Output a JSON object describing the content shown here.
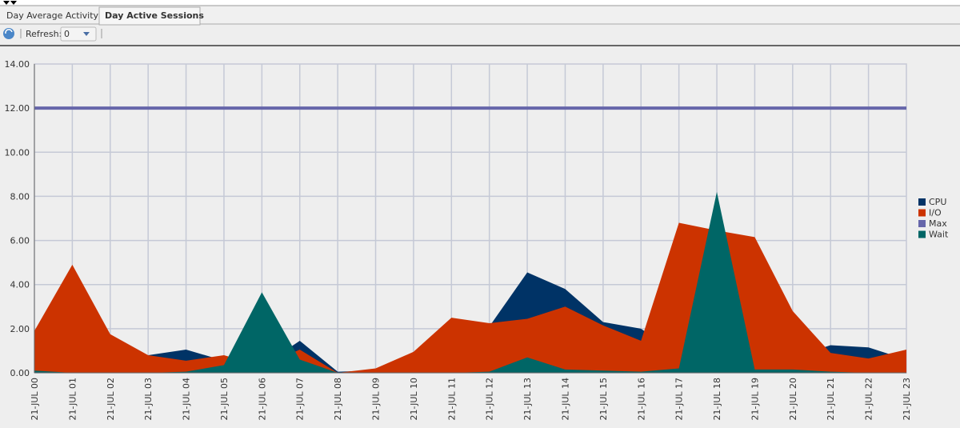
{
  "tabs": [
    "Day Average Activity",
    "Day Active Sessions"
  ],
  "toolbar": {
    "refresh_label": "Refresh:",
    "refresh_value": "0"
  },
  "chart_data": {
    "type": "area",
    "categories": [
      "21-JUL 00",
      "21-JUL 01",
      "21-JUL 02",
      "21-JUL 03",
      "21-JUL 04",
      "21-JUL 05",
      "21-JUL 06",
      "21-JUL 07",
      "21-JUL 08",
      "21-JUL 09",
      "21-JUL 10",
      "21-JUL 11",
      "21-JUL 12",
      "21-JUL 13",
      "21-JUL 14",
      "21-JUL 15",
      "21-JUL 16",
      "21-JUL 17",
      "21-JUL 18",
      "21-JUL 19",
      "21-JUL 20",
      "21-JUL 21",
      "21-JUL 22",
      "21-JUL 23"
    ],
    "series": [
      {
        "name": "CPU",
        "color": "#003366",
        "style": "area",
        "values": [
          1.5,
          0.5,
          0.4,
          0.8,
          1.05,
          0.55,
          0.3,
          1.45,
          0.05,
          0.1,
          0.3,
          0.6,
          2.1,
          4.55,
          3.8,
          2.3,
          2.0,
          0.8,
          0.6,
          0.5,
          0.7,
          1.25,
          1.15,
          0.6
        ]
      },
      {
        "name": "I/O",
        "color": "#cc3300",
        "style": "area",
        "values": [
          1.9,
          4.9,
          1.75,
          0.8,
          0.55,
          0.8,
          0.3,
          1.05,
          0.0,
          0.2,
          0.95,
          2.5,
          2.25,
          2.45,
          3.0,
          2.15,
          1.45,
          6.8,
          6.45,
          6.15,
          2.8,
          0.9,
          0.65,
          1.05
        ]
      },
      {
        "name": "Max",
        "color": "#6666aa",
        "style": "line",
        "values": [
          12,
          12,
          12,
          12,
          12,
          12,
          12,
          12,
          12,
          12,
          12,
          12,
          12,
          12,
          12,
          12,
          12,
          12,
          12,
          12,
          12,
          12,
          12,
          12
        ]
      },
      {
        "name": "Wait",
        "color": "#006666",
        "style": "area",
        "values": [
          0.1,
          0.0,
          0.0,
          0.0,
          0.05,
          0.35,
          3.65,
          0.6,
          0.0,
          0.0,
          0.0,
          0.0,
          0.05,
          0.7,
          0.15,
          0.1,
          0.05,
          0.2,
          8.2,
          0.15,
          0.15,
          0.05,
          0.0,
          0.0
        ]
      }
    ],
    "draw_order": [
      "CPU",
      "I/O",
      "Wait",
      "Max"
    ],
    "ylim": [
      0,
      14
    ],
    "yticks": [
      {
        "value": 0,
        "label": "0.00"
      },
      {
        "value": 2,
        "label": "2.00"
      },
      {
        "value": 4,
        "label": "4.00"
      },
      {
        "value": 6,
        "label": "6.00"
      },
      {
        "value": 8,
        "label": "8.00"
      },
      {
        "value": 10,
        "label": "10.00"
      },
      {
        "value": 12,
        "label": "12.00"
      },
      {
        "value": 14,
        "label": "14.00"
      }
    ],
    "grid": true,
    "legend": "right"
  }
}
